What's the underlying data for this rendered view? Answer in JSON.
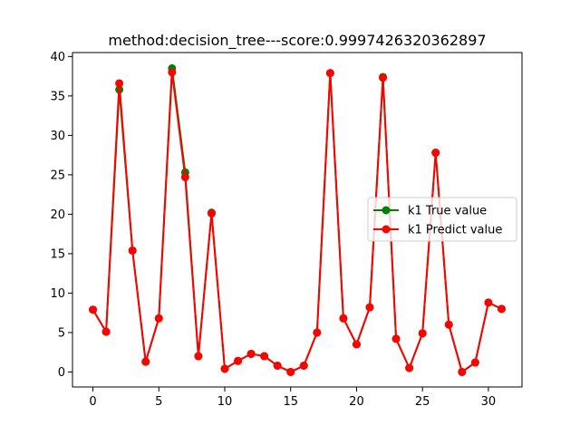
{
  "chart_data": {
    "type": "line",
    "title": "method:decision_tree---score:0.9997426320362897",
    "xlabel": "",
    "ylabel": "",
    "xlim": [
      -1.55,
      32.55
    ],
    "ylim": [
      -1.9,
      40.5
    ],
    "xticks": [
      0,
      5,
      10,
      15,
      20,
      25,
      30
    ],
    "yticks": [
      0,
      5,
      10,
      15,
      20,
      25,
      30,
      35,
      40
    ],
    "grid": false,
    "legend_position": "center-right",
    "x": [
      0,
      1,
      2,
      3,
      4,
      5,
      6,
      7,
      8,
      9,
      10,
      11,
      12,
      13,
      14,
      15,
      16,
      17,
      18,
      19,
      20,
      21,
      22,
      23,
      24,
      25,
      26,
      27,
      28,
      29,
      30,
      31
    ],
    "series": [
      {
        "name": "k1 True value",
        "color": "#008000",
        "marker": "circle",
        "values": [
          7.9,
          5.1,
          35.8,
          15.4,
          1.3,
          6.8,
          38.5,
          25.3,
          2.0,
          20.2,
          0.4,
          1.4,
          2.3,
          2.0,
          0.8,
          0.0,
          0.8,
          5.0,
          37.9,
          6.8,
          3.5,
          8.2,
          37.4,
          4.2,
          0.5,
          4.9,
          27.8,
          6.0,
          0.0,
          1.2,
          8.8,
          8.0
        ]
      },
      {
        "name": "k1 Predict value",
        "color": "#ff0000",
        "marker": "circle",
        "values": [
          7.9,
          5.1,
          36.6,
          15.4,
          1.3,
          6.8,
          38.0,
          24.7,
          2.0,
          20.1,
          0.4,
          1.4,
          2.3,
          2.0,
          0.8,
          0.0,
          0.8,
          5.0,
          37.9,
          6.8,
          3.5,
          8.2,
          37.3,
          4.2,
          0.5,
          4.9,
          27.8,
          6.0,
          0.0,
          1.2,
          8.8,
          8.0
        ]
      }
    ]
  }
}
